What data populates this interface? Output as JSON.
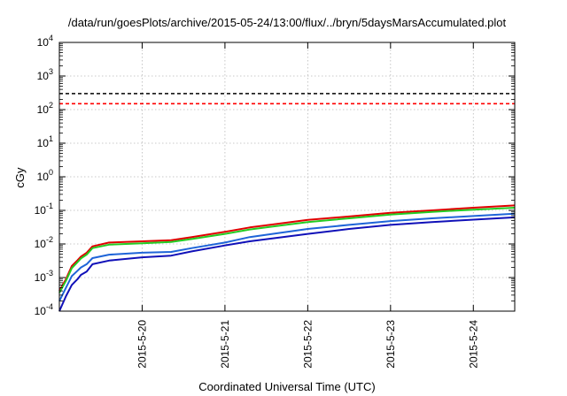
{
  "chart_data": {
    "type": "line",
    "title": "/data/run/goesPlots/archive/2015-05-24/13:00/flux/../bryn/5daysMarsAccumulated.plot",
    "xlabel": "Coordinated Universal Time (UTC)",
    "ylabel": "cGy",
    "y_scale": "log",
    "ylim": [
      0.0001,
      10000
    ],
    "y_ticks": [
      {
        "value": 0.0001,
        "base": "10",
        "exp": "-4"
      },
      {
        "value": 0.001,
        "base": "10",
        "exp": "-3"
      },
      {
        "value": 0.01,
        "base": "10",
        "exp": "-2"
      },
      {
        "value": 0.1,
        "base": "10",
        "exp": "-1"
      },
      {
        "value": 1,
        "base": "10",
        "exp": "0"
      },
      {
        "value": 10,
        "base": "10",
        "exp": "1"
      },
      {
        "value": 100,
        "base": "10",
        "exp": "2"
      },
      {
        "value": 1000,
        "base": "10",
        "exp": "3"
      },
      {
        "value": 10000,
        "base": "10",
        "exp": "4"
      }
    ],
    "x_unit": "days",
    "xlim": [
      0,
      5.5
    ],
    "x_ticks": [
      {
        "value": 1,
        "label": "2015-5-20"
      },
      {
        "value": 2,
        "label": "2015-5-21"
      },
      {
        "value": 3,
        "label": "2015-5-22"
      },
      {
        "value": 4,
        "label": "2015-5-23"
      },
      {
        "value": 5,
        "label": "2015-5-24"
      }
    ],
    "grid": true,
    "reference_lines": [
      {
        "y": 300,
        "color": "#000000",
        "style": "dashed"
      },
      {
        "y": 150,
        "color": "#ff0000",
        "style": "dashed"
      }
    ],
    "series": [
      {
        "color": "#e00000",
        "x": [
          0,
          0.08,
          0.15,
          0.22,
          0.26,
          0.33,
          0.4,
          0.6,
          1.0,
          1.35,
          1.6,
          2.0,
          2.3,
          3.0,
          3.5,
          4.0,
          4.5,
          5.0,
          5.5
        ],
        "y": [
          0.0004,
          0.0009,
          0.0022,
          0.0033,
          0.0042,
          0.0055,
          0.0085,
          0.011,
          0.012,
          0.013,
          0.016,
          0.023,
          0.031,
          0.052,
          0.066,
          0.085,
          0.1,
          0.12,
          0.14
        ]
      },
      {
        "color": "#22cc22",
        "x": [
          0,
          0.08,
          0.15,
          0.22,
          0.26,
          0.33,
          0.4,
          0.6,
          1.0,
          1.35,
          1.6,
          2.0,
          2.3,
          3.0,
          3.5,
          4.0,
          4.5,
          5.0,
          5.5
        ],
        "y": [
          0.00035,
          0.0008,
          0.0019,
          0.0029,
          0.0037,
          0.0048,
          0.0075,
          0.0095,
          0.0105,
          0.0115,
          0.014,
          0.02,
          0.027,
          0.045,
          0.058,
          0.075,
          0.09,
          0.105,
          0.12
        ]
      },
      {
        "color": "#1e64d8",
        "x": [
          0,
          0.08,
          0.15,
          0.22,
          0.26,
          0.33,
          0.4,
          0.6,
          1.0,
          1.35,
          1.6,
          2.0,
          2.3,
          3.0,
          3.5,
          4.0,
          4.5,
          5.0,
          5.5
        ],
        "y": [
          0.0002,
          0.0005,
          0.0011,
          0.0016,
          0.002,
          0.0025,
          0.0038,
          0.0048,
          0.0055,
          0.0058,
          0.0075,
          0.011,
          0.016,
          0.028,
          0.037,
          0.048,
          0.058,
          0.068,
          0.08
        ]
      },
      {
        "color": "#1010b8",
        "x": [
          0,
          0.08,
          0.15,
          0.22,
          0.26,
          0.33,
          0.4,
          0.6,
          1.0,
          1.35,
          1.6,
          2.0,
          2.3,
          3.0,
          3.5,
          4.0,
          4.5,
          5.0,
          5.5
        ],
        "y": [
          0.0001,
          0.00028,
          0.0006,
          0.0009,
          0.0012,
          0.0015,
          0.0025,
          0.0032,
          0.004,
          0.0045,
          0.006,
          0.009,
          0.012,
          0.02,
          0.028,
          0.037,
          0.045,
          0.053,
          0.062
        ]
      }
    ]
  }
}
